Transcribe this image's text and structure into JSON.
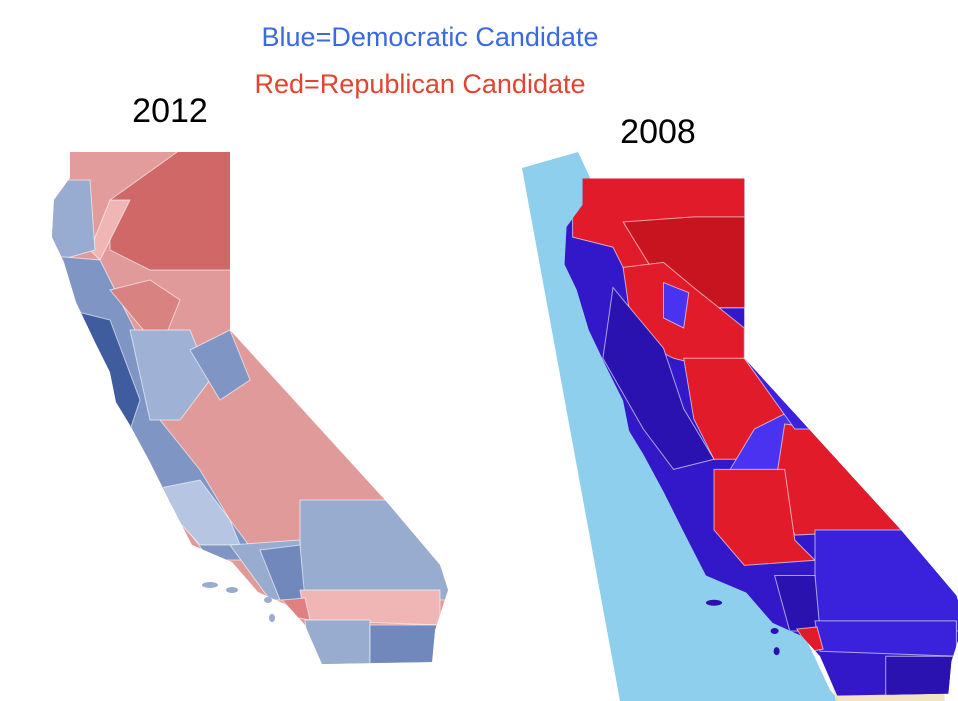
{
  "legend": {
    "democratic": "Blue=Democratic Candidate",
    "republican": "Red=Republican Candidate"
  },
  "maps": [
    {
      "year": "2012"
    },
    {
      "year": "2008"
    }
  ]
}
